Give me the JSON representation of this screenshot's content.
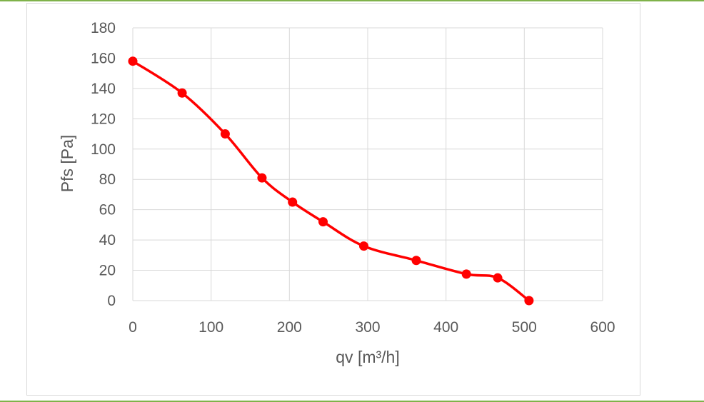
{
  "chart_data": {
    "type": "line",
    "title": "",
    "xlabel": "qv [m³/h]",
    "ylabel": "Pfs [Pa]",
    "xlim": [
      0,
      600
    ],
    "ylim": [
      0,
      180
    ],
    "xticks": [
      0,
      100,
      200,
      300,
      400,
      500,
      600
    ],
    "yticks": [
      0,
      20,
      40,
      60,
      80,
      100,
      120,
      140,
      160,
      180
    ],
    "grid": true,
    "legend": "none",
    "series": [
      {
        "color": "#ff0000",
        "marker": "circle",
        "smooth": true,
        "points": [
          {
            "x": 0,
            "y": 158
          },
          {
            "x": 63,
            "y": 137
          },
          {
            "x": 118,
            "y": 110
          },
          {
            "x": 165,
            "y": 81
          },
          {
            "x": 204,
            "y": 65
          },
          {
            "x": 243,
            "y": 52
          },
          {
            "x": 295,
            "y": 36
          },
          {
            "x": 362,
            "y": 26.5
          },
          {
            "x": 426,
            "y": 17.5
          },
          {
            "x": 466,
            "y": 15
          },
          {
            "x": 506,
            "y": 0
          }
        ]
      }
    ]
  },
  "colors": {
    "grid": "#d9d9d9",
    "text": "#595959",
    "series": "#ff0000",
    "frame_rule": "#7fb24a"
  }
}
